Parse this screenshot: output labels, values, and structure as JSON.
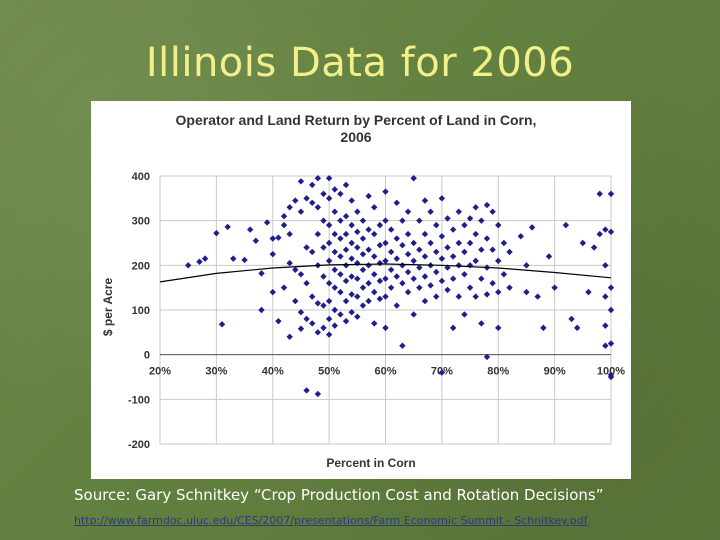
{
  "slide": {
    "title": "Illinois Data for 2006",
    "source_text": "Source: Gary Schnitkey “Crop Production Cost and Rotation Decisions”",
    "source_url": "http://www.farmdoc.uiuc.edu/CES/2007/presentations/Farm Economic Summit - Schnitkey.pdf"
  },
  "chart_data": {
    "type": "scatter",
    "title_line1": "Operator and Land Return by Percent of Land in Corn,",
    "title_line2": "2006",
    "xlabel": "Percent in Corn",
    "ylabel": "$ per Acre",
    "xlim": [
      20,
      100
    ],
    "ylim": [
      -200,
      400
    ],
    "x_ticks": [
      20,
      30,
      40,
      50,
      60,
      70,
      80,
      90,
      100
    ],
    "x_tick_labels": [
      "20%",
      "30%",
      "40%",
      "50%",
      "60%",
      "70%",
      "80%",
      "90%",
      "100%"
    ],
    "y_ticks": [
      -200,
      -100,
      0,
      100,
      200,
      300,
      400
    ],
    "y_tick_labels": [
      "-200",
      "-100",
      "0",
      "100",
      "200",
      "300",
      "400"
    ],
    "grid": true,
    "marker_color": "#1f1f8c",
    "trend_color": "#000000",
    "trend_line": {
      "x": [
        20,
        30,
        40,
        50,
        60,
        70,
        80,
        90,
        100
      ],
      "y": [
        163,
        182,
        194,
        201,
        203,
        200,
        194,
        184,
        172
      ]
    },
    "points": [
      [
        25,
        200
      ],
      [
        27,
        208
      ],
      [
        28,
        215
      ],
      [
        30,
        272
      ],
      [
        31,
        68
      ],
      [
        32,
        286
      ],
      [
        33,
        215
      ],
      [
        35,
        212
      ],
      [
        36,
        280
      ],
      [
        37,
        255
      ],
      [
        38,
        182
      ],
      [
        38,
        100
      ],
      [
        39,
        296
      ],
      [
        40,
        225
      ],
      [
        40,
        260
      ],
      [
        40,
        140
      ],
      [
        41,
        262
      ],
      [
        41,
        75
      ],
      [
        42,
        310
      ],
      [
        42,
        290
      ],
      [
        42,
        150
      ],
      [
        43,
        330
      ],
      [
        43,
        270
      ],
      [
        43,
        205
      ],
      [
        43,
        40
      ],
      [
        44,
        345
      ],
      [
        44,
        190
      ],
      [
        44,
        120
      ],
      [
        45,
        388
      ],
      [
        45,
        320
      ],
      [
        45,
        180
      ],
      [
        45,
        95
      ],
      [
        45,
        58
      ],
      [
        46,
        350
      ],
      [
        46,
        240
      ],
      [
        46,
        160
      ],
      [
        46,
        80
      ],
      [
        46,
        -80
      ],
      [
        47,
        380
      ],
      [
        47,
        340
      ],
      [
        47,
        230
      ],
      [
        47,
        130
      ],
      [
        47,
        70
      ],
      [
        48,
        395
      ],
      [
        48,
        330
      ],
      [
        48,
        270
      ],
      [
        48,
        200
      ],
      [
        48,
        115
      ],
      [
        48,
        50
      ],
      [
        48,
        -88
      ],
      [
        49,
        360
      ],
      [
        49,
        300
      ],
      [
        49,
        240
      ],
      [
        49,
        175
      ],
      [
        49,
        110
      ],
      [
        49,
        60
      ],
      [
        50,
        395
      ],
      [
        50,
        350
      ],
      [
        50,
        290
      ],
      [
        50,
        250
      ],
      [
        50,
        210
      ],
      [
        50,
        160
      ],
      [
        50,
        120
      ],
      [
        50,
        80
      ],
      [
        50,
        45
      ],
      [
        51,
        370
      ],
      [
        51,
        320
      ],
      [
        51,
        270
      ],
      [
        51,
        230
      ],
      [
        51,
        190
      ],
      [
        51,
        150
      ],
      [
        51,
        100
      ],
      [
        51,
        65
      ],
      [
        52,
        360
      ],
      [
        52,
        300
      ],
      [
        52,
        260
      ],
      [
        52,
        220
      ],
      [
        52,
        180
      ],
      [
        52,
        140
      ],
      [
        52,
        90
      ],
      [
        53,
        380
      ],
      [
        53,
        310
      ],
      [
        53,
        270
      ],
      [
        53,
        235
      ],
      [
        53,
        200
      ],
      [
        53,
        165
      ],
      [
        53,
        120
      ],
      [
        53,
        75
      ],
      [
        54,
        345
      ],
      [
        54,
        290
      ],
      [
        54,
        250
      ],
      [
        54,
        215
      ],
      [
        54,
        175
      ],
      [
        54,
        135
      ],
      [
        54,
        95
      ],
      [
        55,
        320
      ],
      [
        55,
        275
      ],
      [
        55,
        240
      ],
      [
        55,
        205
      ],
      [
        55,
        170
      ],
      [
        55,
        130
      ],
      [
        55,
        85
      ],
      [
        56,
        300
      ],
      [
        56,
        260
      ],
      [
        56,
        225
      ],
      [
        56,
        190
      ],
      [
        56,
        150
      ],
      [
        56,
        110
      ],
      [
        57,
        355
      ],
      [
        57,
        280
      ],
      [
        57,
        235
      ],
      [
        57,
        200
      ],
      [
        57,
        160
      ],
      [
        57,
        120
      ],
      [
        58,
        330
      ],
      [
        58,
        270
      ],
      [
        58,
        220
      ],
      [
        58,
        180
      ],
      [
        58,
        140
      ],
      [
        58,
        70
      ],
      [
        59,
        290
      ],
      [
        59,
        245
      ],
      [
        59,
        205
      ],
      [
        59,
        165
      ],
      [
        59,
        125
      ],
      [
        60,
        365
      ],
      [
        60,
        300
      ],
      [
        60,
        250
      ],
      [
        60,
        210
      ],
      [
        60,
        170
      ],
      [
        60,
        130
      ],
      [
        60,
        60
      ],
      [
        61,
        280
      ],
      [
        61,
        230
      ],
      [
        61,
        190
      ],
      [
        61,
        150
      ],
      [
        62,
        340
      ],
      [
        62,
        260
      ],
      [
        62,
        215
      ],
      [
        62,
        175
      ],
      [
        62,
        110
      ],
      [
        63,
        300
      ],
      [
        63,
        245
      ],
      [
        63,
        200
      ],
      [
        63,
        160
      ],
      [
        63,
        20
      ],
      [
        64,
        320
      ],
      [
        64,
        270
      ],
      [
        64,
        225
      ],
      [
        64,
        185
      ],
      [
        64,
        140
      ],
      [
        65,
        395
      ],
      [
        65,
        250
      ],
      [
        65,
        210
      ],
      [
        65,
        170
      ],
      [
        65,
        90
      ],
      [
        66,
        300
      ],
      [
        66,
        235
      ],
      [
        66,
        195
      ],
      [
        66,
        150
      ],
      [
        67,
        345
      ],
      [
        67,
        270
      ],
      [
        67,
        220
      ],
      [
        67,
        175
      ],
      [
        67,
        120
      ],
      [
        68,
        320
      ],
      [
        68,
        250
      ],
      [
        68,
        200
      ],
      [
        68,
        155
      ],
      [
        69,
        290
      ],
      [
        69,
        230
      ],
      [
        69,
        185
      ],
      [
        69,
        130
      ],
      [
        70,
        350
      ],
      [
        70,
        265
      ],
      [
        70,
        215
      ],
      [
        70,
        165
      ],
      [
        70,
        -40
      ],
      [
        71,
        305
      ],
      [
        71,
        240
      ],
      [
        71,
        195
      ],
      [
        71,
        145
      ],
      [
        72,
        280
      ],
      [
        72,
        220
      ],
      [
        72,
        170
      ],
      [
        72,
        60
      ],
      [
        73,
        320
      ],
      [
        73,
        250
      ],
      [
        73,
        200
      ],
      [
        73,
        130
      ],
      [
        74,
        290
      ],
      [
        74,
        230
      ],
      [
        74,
        180
      ],
      [
        74,
        90
      ],
      [
        75,
        305
      ],
      [
        75,
        250
      ],
      [
        75,
        200
      ],
      [
        75,
        150
      ],
      [
        76,
        330
      ],
      [
        76,
        270
      ],
      [
        76,
        210
      ],
      [
        76,
        130
      ],
      [
        77,
        300
      ],
      [
        77,
        235
      ],
      [
        77,
        170
      ],
      [
        77,
        70
      ],
      [
        78,
        335
      ],
      [
        78,
        260
      ],
      [
        78,
        195
      ],
      [
        78,
        135
      ],
      [
        78,
        -5
      ],
      [
        79,
        320
      ],
      [
        79,
        235
      ],
      [
        79,
        160
      ],
      [
        80,
        290
      ],
      [
        80,
        210
      ],
      [
        80,
        140
      ],
      [
        80,
        60
      ],
      [
        81,
        250
      ],
      [
        81,
        180
      ],
      [
        82,
        230
      ],
      [
        82,
        150
      ],
      [
        84,
        265
      ],
      [
        85,
        200
      ],
      [
        85,
        140
      ],
      [
        86,
        285
      ],
      [
        87,
        130
      ],
      [
        88,
        60
      ],
      [
        89,
        220
      ],
      [
        90,
        150
      ],
      [
        92,
        290
      ],
      [
        93,
        80
      ],
      [
        94,
        60
      ],
      [
        95,
        250
      ],
      [
        96,
        140
      ],
      [
        97,
        240
      ],
      [
        98,
        360
      ],
      [
        98,
        270
      ],
      [
        99,
        280
      ],
      [
        99,
        200
      ],
      [
        99,
        130
      ],
      [
        99,
        65
      ],
      [
        99,
        20
      ],
      [
        100,
        -50
      ],
      [
        100,
        360
      ],
      [
        100,
        275
      ],
      [
        100,
        150
      ],
      [
        100,
        100
      ],
      [
        100,
        25
      ],
      [
        100,
        -45
      ]
    ]
  }
}
